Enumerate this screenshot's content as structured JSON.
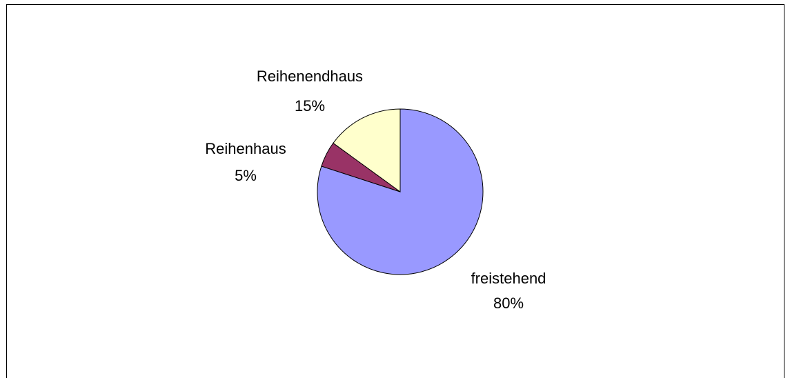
{
  "chart_data": {
    "type": "pie",
    "categories": [
      "freistehend",
      "Reihenhaus",
      "Reihenendhaus"
    ],
    "values": [
      80,
      5,
      15
    ],
    "value_labels": [
      "80%",
      "5%",
      "15%"
    ],
    "colors": [
      "#9999ff",
      "#993366",
      "#ffffcc"
    ]
  }
}
